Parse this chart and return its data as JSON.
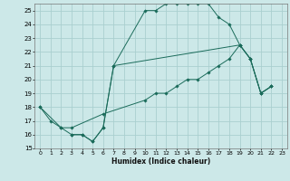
{
  "xlabel": "Humidex (Indice chaleur)",
  "bg_color": "#cce8e8",
  "grid_color": "#aacfcf",
  "line_color": "#1a6b5a",
  "xlim": [
    -0.5,
    23.5
  ],
  "ylim": [
    15,
    25.5
  ],
  "xtick_labels": [
    "0",
    "1",
    "2",
    "3",
    "4",
    "5",
    "6",
    "7",
    "8",
    "9",
    "10",
    "11",
    "12",
    "13",
    "14",
    "15",
    "16",
    "17",
    "18",
    "19",
    "20",
    "21",
    "22",
    "23"
  ],
  "xtick_vals": [
    0,
    1,
    2,
    3,
    4,
    5,
    6,
    7,
    8,
    9,
    10,
    11,
    12,
    13,
    14,
    15,
    16,
    17,
    18,
    19,
    20,
    21,
    22,
    23
  ],
  "ytick_vals": [
    15,
    16,
    17,
    18,
    19,
    20,
    21,
    22,
    23,
    24,
    25
  ],
  "lines": [
    {
      "x": [
        0,
        1,
        2,
        3,
        4,
        5,
        6,
        7,
        10,
        11,
        12,
        13,
        14,
        15,
        16,
        17,
        18,
        19,
        20,
        21,
        22
      ],
      "y": [
        18,
        17,
        16.5,
        16,
        16,
        15.5,
        16.5,
        21,
        25,
        25,
        25.5,
        25.5,
        25.5,
        25.5,
        25.5,
        24.5,
        24,
        22.5,
        21.5,
        19,
        19.5
      ]
    },
    {
      "x": [
        3,
        4,
        5,
        6,
        7,
        19,
        20,
        21,
        22
      ],
      "y": [
        16,
        16,
        15.5,
        16.5,
        21,
        22.5,
        21.5,
        19,
        19.5
      ]
    },
    {
      "x": [
        0,
        2,
        3,
        6,
        10,
        11,
        12,
        13,
        14,
        15,
        16,
        17,
        18,
        19,
        20,
        21,
        22
      ],
      "y": [
        18,
        16.5,
        16.5,
        17.5,
        18.5,
        19,
        19,
        19.5,
        20,
        20,
        20.5,
        21,
        21.5,
        22.5,
        21.5,
        19,
        19.5
      ]
    }
  ]
}
